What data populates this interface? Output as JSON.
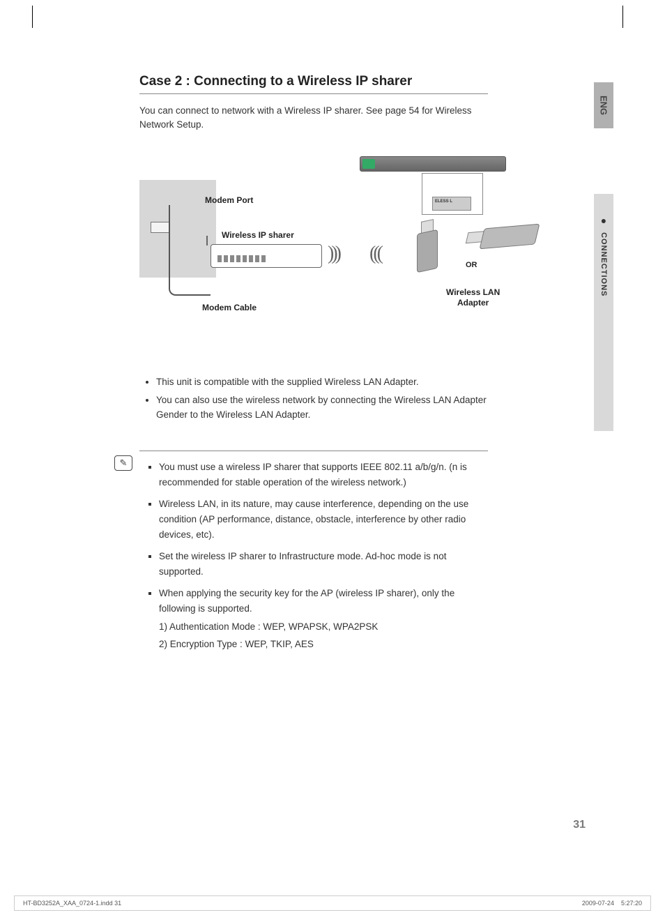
{
  "lang_tab": "ENG",
  "section_tab": "CONNECTIONS",
  "title": "Case 2 : Connecting to a Wireless IP sharer",
  "intro": "You can connect to network with a Wireless IP sharer. See page 54 for Wireless Network Setup.",
  "diagram": {
    "modem_port": "Modem Port",
    "wireless_ip_sharer": "Wireless IP sharer",
    "modem_cable": "Modem Cable",
    "or": "OR",
    "wlan_adapter_line1": "Wireless LAN",
    "wlan_adapter_line2": "Adapter",
    "port_label": "ELESS L",
    "waves_out": ")))",
    "waves_in": "((("
  },
  "bullets": [
    "This unit is compatible with the supplied Wireless LAN Adapter.",
    "You can also use the wireless network by connecting the Wireless LAN Adapter Gender to the Wireless LAN Adapter."
  ],
  "note_icon": "✎",
  "notes": [
    {
      "text": "You must use a wireless IP sharer that supports IEEE 802.11 a/b/g/n. (n is recommended for stable operation of the wireless network.)"
    },
    {
      "text": "Wireless LAN, in its nature, may cause interference, depending on the use condition (AP performance, distance, obstacle, interference by other radio devices, etc)."
    },
    {
      "text": "Set the wireless IP sharer to Infrastructure mode. Ad-hoc mode is not supported."
    },
    {
      "text": "When applying the security key for the AP (wireless IP sharer), only the following is supported.",
      "sub": [
        "1) Authentication Mode : WEP, WPAPSK, WPA2PSK",
        "2) Encryption Type : WEP, TKIP, AES"
      ]
    }
  ],
  "page_number": "31",
  "footer_left": "HT-BD3252A_XAA_0724-1.indd   31",
  "footer_date": "2009-07-24",
  "footer_time": "5:27:20"
}
